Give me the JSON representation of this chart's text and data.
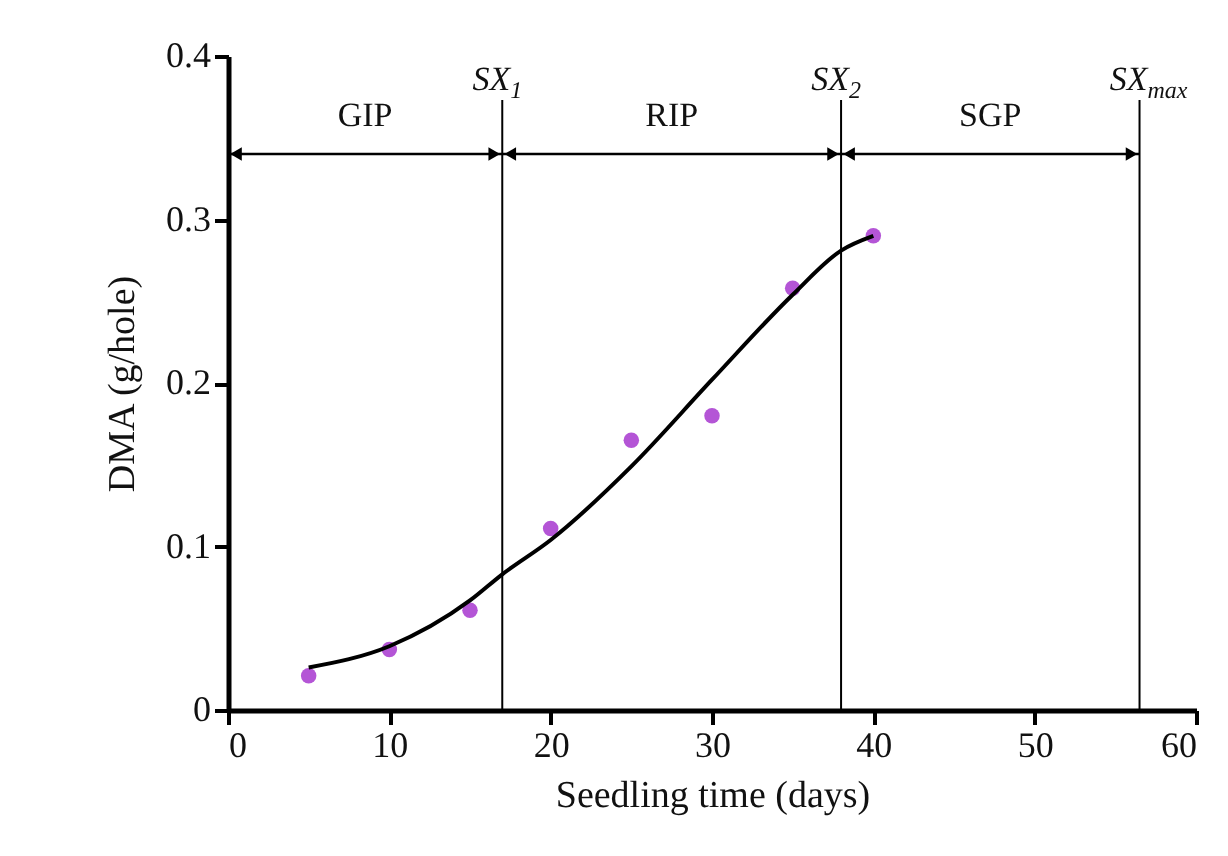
{
  "chart_data": {
    "type": "scatter",
    "xlabel": "Seedling time (days)",
    "ylabel": "DMA (g/hole)",
    "xlim": [
      0,
      60
    ],
    "xticks": [
      0,
      10,
      20,
      30,
      40,
      50,
      60
    ],
    "ylim": [
      0,
      0.4
    ],
    "yticks": [
      0,
      0.1,
      0.2,
      0.3,
      0.4
    ],
    "grid": false,
    "marker": "circle",
    "series": [
      {
        "color": "#b455d6",
        "x": [
          5,
          10,
          15,
          20,
          25,
          30,
          35,
          40
        ],
        "values": [
          0.021,
          0.037,
          0.061,
          0.111,
          0.165,
          0.18,
          0.258,
          0.29
        ]
      },
      {
        "type": "line",
        "marker": "none",
        "color": "#000000",
        "x": [
          5,
          10,
          15,
          17,
          20,
          25,
          30,
          35,
          38,
          40
        ],
        "values": [
          0.026,
          0.039,
          0.067,
          0.083,
          0.104,
          0.149,
          0.202,
          0.254,
          0.281,
          0.29
        ]
      }
    ],
    "ref_lines": [
      {
        "axis": "x",
        "value": 17,
        "label": "SX$_{1}$",
        "color": "#000000"
      },
      {
        "axis": "x",
        "value": 38,
        "label": "SX$_{2}$",
        "color": "#000000"
      },
      {
        "axis": "x",
        "value": 56.5,
        "label": "SX$_{max}$",
        "color": "#000000"
      }
    ],
    "annotations": [
      "GIP",
      "RIP",
      "SGP"
    ]
  }
}
